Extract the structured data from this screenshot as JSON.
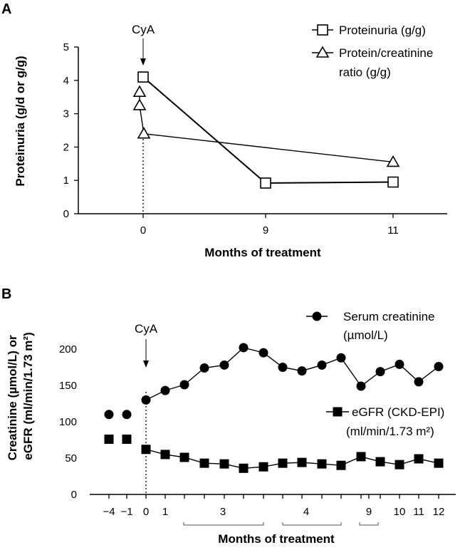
{
  "chart_data": [
    {
      "panel": "A",
      "type": "line",
      "xlabel": "Months of treatment",
      "ylabel": "Proteinuria (g/d or g/g)",
      "ylim": [
        0,
        5
      ],
      "yticks": [
        "0",
        "1",
        "2",
        "3",
        "4",
        "5"
      ],
      "xticks": [
        {
          "x": 0,
          "label": "0"
        },
        {
          "x": 9,
          "label": "9"
        },
        {
          "x": 11,
          "label": "11"
        }
      ],
      "annotation": {
        "label": "CyA",
        "x": 0
      },
      "series": [
        {
          "name": "Proteinuria (g/g)",
          "legend_lines": [
            "Proteinuria (g/g)"
          ],
          "marker": "square",
          "points": [
            {
              "x": 0,
              "y": 4.1
            },
            {
              "x": 9,
              "y": 0.92
            },
            {
              "x": 11,
              "y": 0.95
            }
          ]
        },
        {
          "name": "Protein/creatinine ratio (g/g)",
          "legend_lines": [
            "Protein/creatinine",
            "ratio (g/g)"
          ],
          "marker": "triangle",
          "points": [
            {
              "x": 0,
              "y": 3.65
            },
            {
              "x": 0,
              "y": 3.25
            },
            {
              "x": 0,
              "y": 2.4
            },
            {
              "x": 11,
              "y": 1.55
            }
          ]
        }
      ]
    },
    {
      "panel": "B",
      "type": "line",
      "xlabel": "Months of treatment",
      "ylabel_lines": [
        "Creatinine (µmol/L) or",
        "eGFR (ml/min/1.73 m²)"
      ],
      "ylim": [
        0,
        200
      ],
      "yticks": [
        "0",
        "50",
        "100",
        "150",
        "200"
      ],
      "xticks": [
        {
          "x": -4,
          "label": "−4"
        },
        {
          "x": -1,
          "label": "−1"
        },
        {
          "x": 0,
          "label": "0"
        },
        {
          "x": 1,
          "label": "1"
        },
        {
          "x": 3,
          "label": "3"
        },
        {
          "x": 4,
          "label": "4"
        },
        {
          "x": 9,
          "label": "9"
        },
        {
          "x": 10,
          "label": "10"
        },
        {
          "x": 11,
          "label": "11"
        },
        {
          "x": 12,
          "label": "12"
        }
      ],
      "annotation": {
        "label": "CyA",
        "x": 0
      },
      "series": [
        {
          "name": "Serum creatinine (µmol/L)",
          "legend_lines": [
            "Serum creatinine",
            "(µmol/L)"
          ],
          "marker": "circle",
          "pre_points": [
            {
              "x": -4,
              "y": 110
            },
            {
              "x": -1,
              "y": 110
            }
          ],
          "points": [
            {
              "x": 0,
              "y": 130
            },
            {
              "x": 1,
              "y": 143
            },
            {
              "x": 2,
              "y": 151
            },
            {
              "x": 2.67,
              "y": 174
            },
            {
              "x": 3.33,
              "y": 178
            },
            {
              "x": 4,
              "y": 202
            },
            {
              "x": 4.67,
              "y": 195
            },
            {
              "x": 5.33,
              "y": 175
            },
            {
              "x": 6,
              "y": 170
            },
            {
              "x": 6.67,
              "y": 178
            },
            {
              "x": 7.33,
              "y": 188
            },
            {
              "x": 8,
              "y": 149
            },
            {
              "x": 9,
              "y": 169
            },
            {
              "x": 10,
              "y": 179
            },
            {
              "x": 11,
              "y": 155
            },
            {
              "x": 12,
              "y": 176
            }
          ]
        },
        {
          "name": "eGFR (CKD-EPI) (ml/min/1.73 m²)",
          "legend_lines": [
            "eGFR (CKD-EPI)",
            "(ml/min/1.73 m²)"
          ],
          "marker": "square-filled",
          "pre_points": [
            {
              "x": -4,
              "y": 76
            },
            {
              "x": -1,
              "y": 76
            }
          ],
          "points": [
            {
              "x": 0,
              "y": 62
            },
            {
              "x": 1,
              "y": 55
            },
            {
              "x": 2,
              "y": 51
            },
            {
              "x": 2.67,
              "y": 43
            },
            {
              "x": 3.33,
              "y": 42
            },
            {
              "x": 4,
              "y": 36
            },
            {
              "x": 4.67,
              "y": 38
            },
            {
              "x": 5.33,
              "y": 43
            },
            {
              "x": 6,
              "y": 44
            },
            {
              "x": 6.67,
              "y": 42
            },
            {
              "x": 7.33,
              "y": 40
            },
            {
              "x": 8,
              "y": 52
            },
            {
              "x": 9,
              "y": 45
            },
            {
              "x": 10,
              "y": 41
            },
            {
              "x": 11,
              "y": 49
            },
            {
              "x": 12,
              "y": 43
            }
          ]
        }
      ]
    }
  ]
}
